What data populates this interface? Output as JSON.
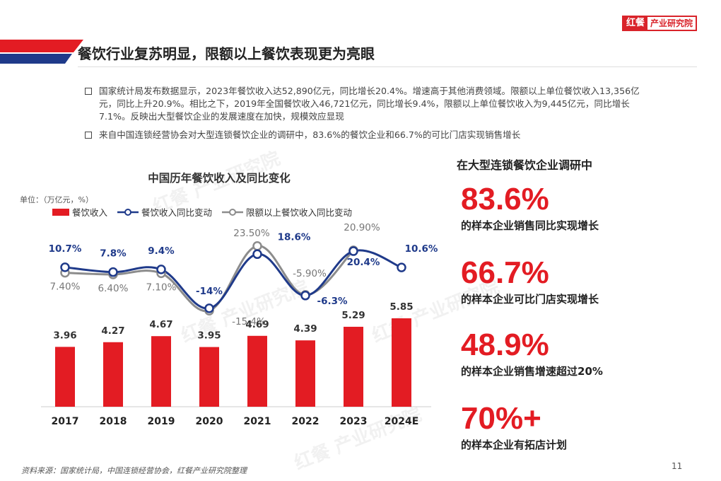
{
  "brand": {
    "mark": "红餐",
    "name": "产业研究院"
  },
  "page_title": "餐饮行业复苏明显，限额以上餐饮表现更为亮眼",
  "bullets": [
    "国家统计局发布数据显示，2023年餐饮收入达52,890亿元，同比增长20.4%。增速高于其他消费领域。限额以上单位餐饮收入13,356亿元，同比上升20.9%。相比之下，2019年全国餐饮收入46,721亿元，同比增长9.4%，限额以上单位餐饮收入为9,445亿元，同比增长7.1%。反映出大型餐饮企业的发展速度在加快，规模效应显现",
    "来自中国连锁经营协会对大型连锁餐饮企业的调研中，83.6%的餐饮企业和66.7%的可比门店实现销售增长"
  ],
  "chart_data": {
    "type": "bar",
    "title": "中国历年餐饮收入及同比变化",
    "unit_label": "单位：（万亿元，%）",
    "categories": [
      "2017",
      "2018",
      "2019",
      "2020",
      "2021",
      "2022",
      "2023",
      "2024E"
    ],
    "series": [
      {
        "name": "餐饮收入",
        "type": "bar",
        "color": "#e31c23",
        "values": [
          3.96,
          4.27,
          4.67,
          3.95,
          4.69,
          4.39,
          5.29,
          5.85
        ],
        "labels": [
          "3.96",
          "4.27",
          "4.67",
          "3.95",
          "4.69",
          "4.39",
          "5.29",
          "5.85"
        ]
      },
      {
        "name": "餐饮收入同比变动",
        "type": "line",
        "color": "#1f3a8a",
        "values": [
          10.7,
          7.8,
          9.4,
          -14,
          18.6,
          -6.3,
          20.4,
          10.6
        ],
        "labels": [
          "10.7%",
          "7.8%",
          "9.4%",
          "-14%",
          "18.6%",
          "-6.3%",
          "20.4%",
          "10.6%"
        ]
      },
      {
        "name": "限额以上餐饮收入同比变动",
        "type": "line",
        "color": "#8c8c8c",
        "values": [
          7.4,
          6.4,
          7.1,
          -15.4,
          23.5,
          -5.9,
          20.9,
          null
        ],
        "labels": [
          "7.40%",
          "6.40%",
          "7.10%",
          "-15.4%",
          "23.50%",
          "-5.90%",
          "20.90%",
          ""
        ]
      }
    ]
  },
  "stats": {
    "heading": "在大型连锁餐饮企业调研中",
    "items": [
      {
        "value": "83.6%",
        "caption": "的样本企业销售同比实现增长"
      },
      {
        "value": "66.7%",
        "caption": "的样本企业可比门店实现增长"
      },
      {
        "value": "48.9%",
        "caption": "的样本企业销售增速超过20%"
      },
      {
        "value": "70%+",
        "caption": "的样本企业有拓店计划"
      }
    ]
  },
  "source": "资料来源：国家统计局，中国连锁经营协会，红餐产业研究院整理",
  "page_number": "11",
  "watermark": "红餐 产业研究院"
}
